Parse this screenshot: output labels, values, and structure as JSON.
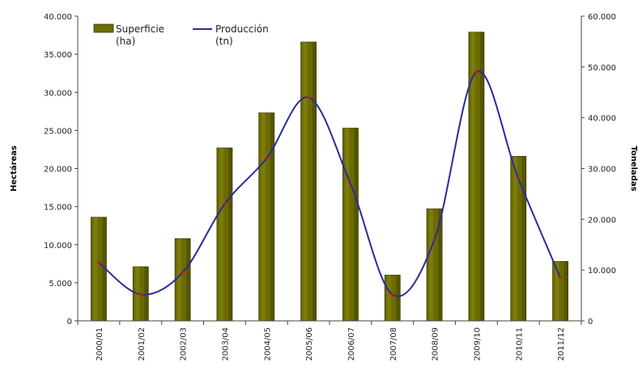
{
  "chart_data": {
    "type": "bar",
    "categories": [
      "2000/01",
      "2001/02",
      "2002/03",
      "2003/04",
      "2004/05",
      "2005/06",
      "2006/07",
      "2007/08",
      "2008/09",
      "2009/10",
      "2010/11",
      "2011/12"
    ],
    "series": [
      {
        "name": "Superficie (ha)",
        "name_lines": [
          "Superficie",
          "(ha)"
        ],
        "type": "bar",
        "axis": "left",
        "color": "#6b6b00",
        "values": [
          13600,
          7100,
          10800,
          22700,
          27300,
          36600,
          25300,
          6000,
          14700,
          37900,
          21600,
          7800
        ]
      },
      {
        "name": "Producción (tn)",
        "name_lines": [
          "Producción",
          "(tn)"
        ],
        "type": "line",
        "axis": "right",
        "color": "#2b2b99",
        "values": [
          11500,
          5200,
          9500,
          23000,
          32000,
          44000,
          27000,
          5200,
          16000,
          49000,
          28000,
          8500
        ]
      }
    ],
    "ylabel_left": "Hectáreas",
    "ylabel_right": "Toneladas",
    "ylim_left": [
      0,
      40000
    ],
    "ylim_right": [
      0,
      60000
    ],
    "yticks_left": [
      "0",
      "5.000",
      "10.000",
      "15.000",
      "20.000",
      "25.000",
      "30.000",
      "35.000",
      "40.000"
    ],
    "yticks_right": [
      "0",
      "10.000",
      "20.000",
      "30.000",
      "40.000",
      "50.000",
      "60.000"
    ],
    "grid": false,
    "legend_position": "top-left",
    "colors": {
      "marker": "#cc2200"
    }
  }
}
